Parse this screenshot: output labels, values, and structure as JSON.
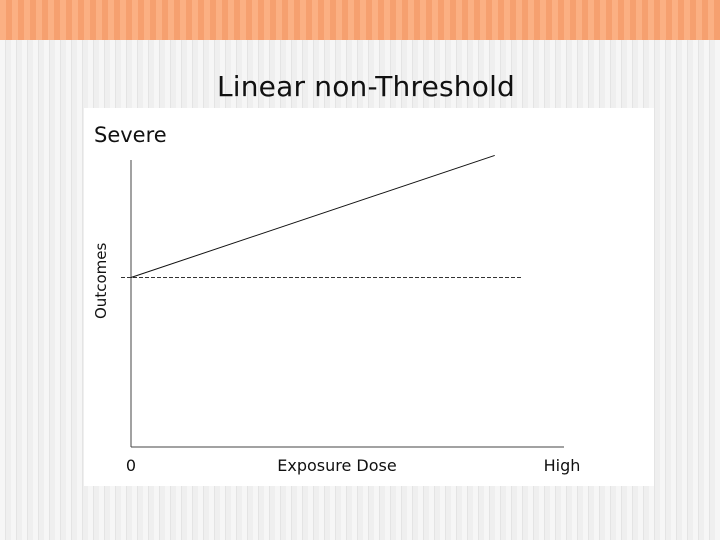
{
  "slide": {
    "title": "Linear non-Threshold"
  },
  "chart_data": {
    "type": "line",
    "title": "Linear non-Threshold",
    "xlabel": "Exposure Dose",
    "ylabel": "Outcomes",
    "x_tick_labels": [
      "0",
      "High"
    ],
    "y_top_label": "Severe",
    "xlim": [
      0,
      1
    ],
    "ylim": [
      0,
      1
    ],
    "series": [
      {
        "x": [
          0,
          0.84
        ],
        "y": [
          0.5,
          0.86
        ],
        "style": "solid"
      }
    ],
    "baseline": {
      "y": 0.5,
      "style": "dashed"
    },
    "grid": false,
    "legend": "none"
  }
}
